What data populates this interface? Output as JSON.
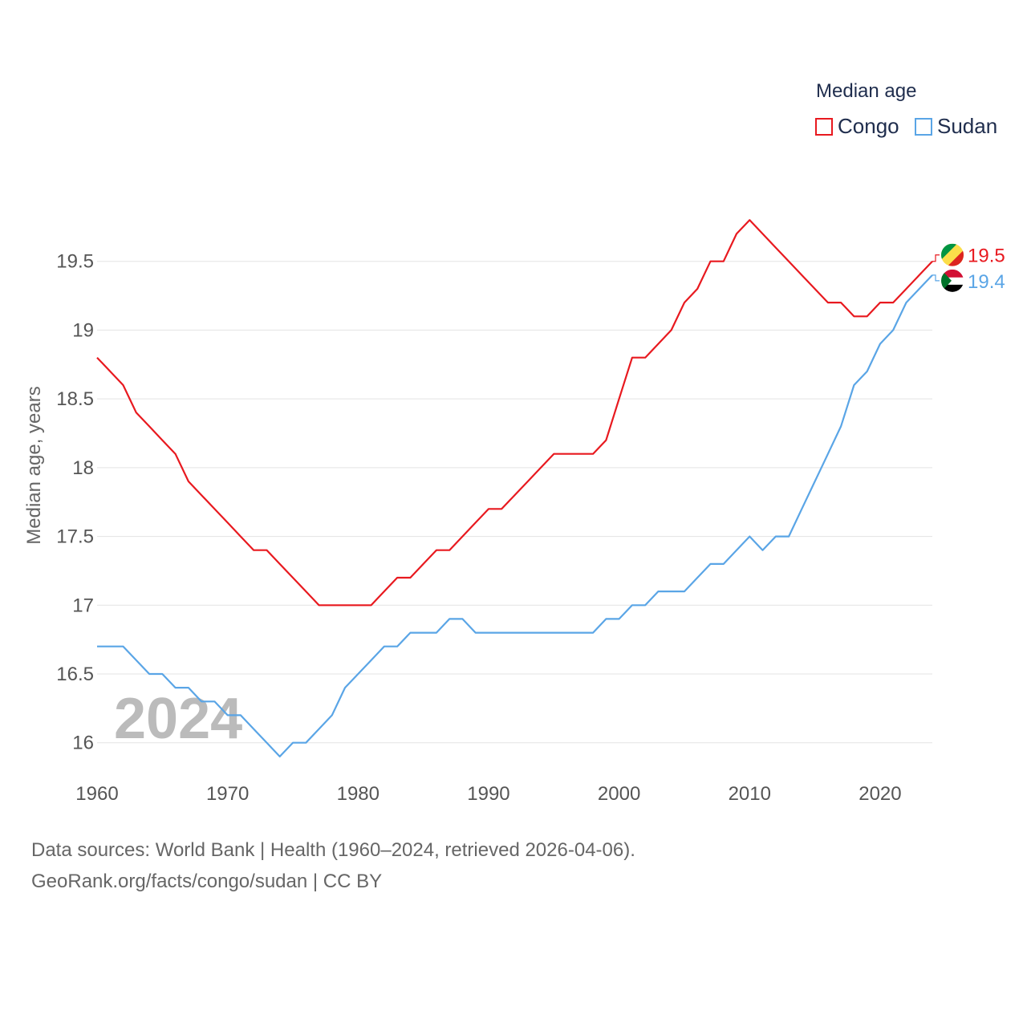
{
  "legend": {
    "title": "Median age",
    "items": [
      {
        "name": "Congo",
        "color": "#e8191f"
      },
      {
        "name": "Sudan",
        "color": "#5aa5e6"
      }
    ]
  },
  "footer": {
    "line1": "Data sources: World Bank | Health (1960–2024, retrieved 2026-04-06).",
    "line2": "GeoRank.org/facts/congo/sudan | CC BY"
  },
  "flags": {
    "congo": [
      "#009543",
      "#fbde4a",
      "#dc241f"
    ],
    "sudan": [
      "#d21034",
      "#ffffff",
      "#000000",
      "#007229"
    ]
  },
  "chart_data": {
    "type": "line",
    "title": "",
    "xlabel": "",
    "ylabel": "Median age, years",
    "xlim": [
      1960,
      2024
    ],
    "ylim": [
      15.8,
      20.0
    ],
    "xticks": [
      1960,
      1970,
      1980,
      1990,
      2000,
      2010,
      2020
    ],
    "yticks": [
      16,
      16.5,
      17,
      17.5,
      18,
      18.5,
      19,
      19.5
    ],
    "ytick_labels": [
      "16",
      "16.5",
      "17",
      "17.5",
      "18",
      "18.5",
      "19",
      "19.5"
    ],
    "year_label": "2024",
    "x": [
      1960,
      1961,
      1962,
      1963,
      1964,
      1965,
      1966,
      1967,
      1968,
      1969,
      1970,
      1971,
      1972,
      1973,
      1974,
      1975,
      1976,
      1977,
      1978,
      1979,
      1980,
      1981,
      1982,
      1983,
      1984,
      1985,
      1986,
      1987,
      1988,
      1989,
      1990,
      1991,
      1992,
      1993,
      1994,
      1995,
      1996,
      1997,
      1998,
      1999,
      2000,
      2001,
      2002,
      2003,
      2004,
      2005,
      2006,
      2007,
      2008,
      2009,
      2010,
      2011,
      2012,
      2013,
      2014,
      2015,
      2016,
      2017,
      2018,
      2019,
      2020,
      2021,
      2022,
      2023,
      2024
    ],
    "series": [
      {
        "name": "Congo",
        "color": "#e8191f",
        "end_label": "19.5",
        "values": [
          18.8,
          18.7,
          18.6,
          18.4,
          18.3,
          18.2,
          18.1,
          17.9,
          17.8,
          17.7,
          17.6,
          17.5,
          17.4,
          17.4,
          17.3,
          17.2,
          17.1,
          17.0,
          17.0,
          17.0,
          17.0,
          17.0,
          17.1,
          17.2,
          17.2,
          17.3,
          17.4,
          17.4,
          17.5,
          17.6,
          17.7,
          17.7,
          17.8,
          17.9,
          18.0,
          18.1,
          18.1,
          18.1,
          18.1,
          18.2,
          18.5,
          18.8,
          18.8,
          18.9,
          19.0,
          19.2,
          19.3,
          19.5,
          19.5,
          19.7,
          19.8,
          19.7,
          19.6,
          19.5,
          19.4,
          19.3,
          19.2,
          19.2,
          19.1,
          19.1,
          19.2,
          19.2,
          19.3,
          19.4,
          19.5
        ]
      },
      {
        "name": "Sudan",
        "color": "#5aa5e6",
        "end_label": "19.4",
        "values": [
          16.7,
          16.7,
          16.7,
          16.6,
          16.5,
          16.5,
          16.4,
          16.4,
          16.3,
          16.3,
          16.2,
          16.2,
          16.1,
          16.0,
          15.9,
          16.0,
          16.0,
          16.1,
          16.2,
          16.4,
          16.5,
          16.6,
          16.7,
          16.7,
          16.8,
          16.8,
          16.8,
          16.9,
          16.9,
          16.8,
          16.8,
          16.8,
          16.8,
          16.8,
          16.8,
          16.8,
          16.8,
          16.8,
          16.8,
          16.9,
          16.9,
          17.0,
          17.0,
          17.1,
          17.1,
          17.1,
          17.2,
          17.3,
          17.3,
          17.4,
          17.5,
          17.4,
          17.5,
          17.5,
          17.7,
          17.9,
          18.1,
          18.3,
          18.6,
          18.7,
          18.9,
          19.0,
          19.2,
          19.3,
          19.4
        ]
      }
    ]
  }
}
